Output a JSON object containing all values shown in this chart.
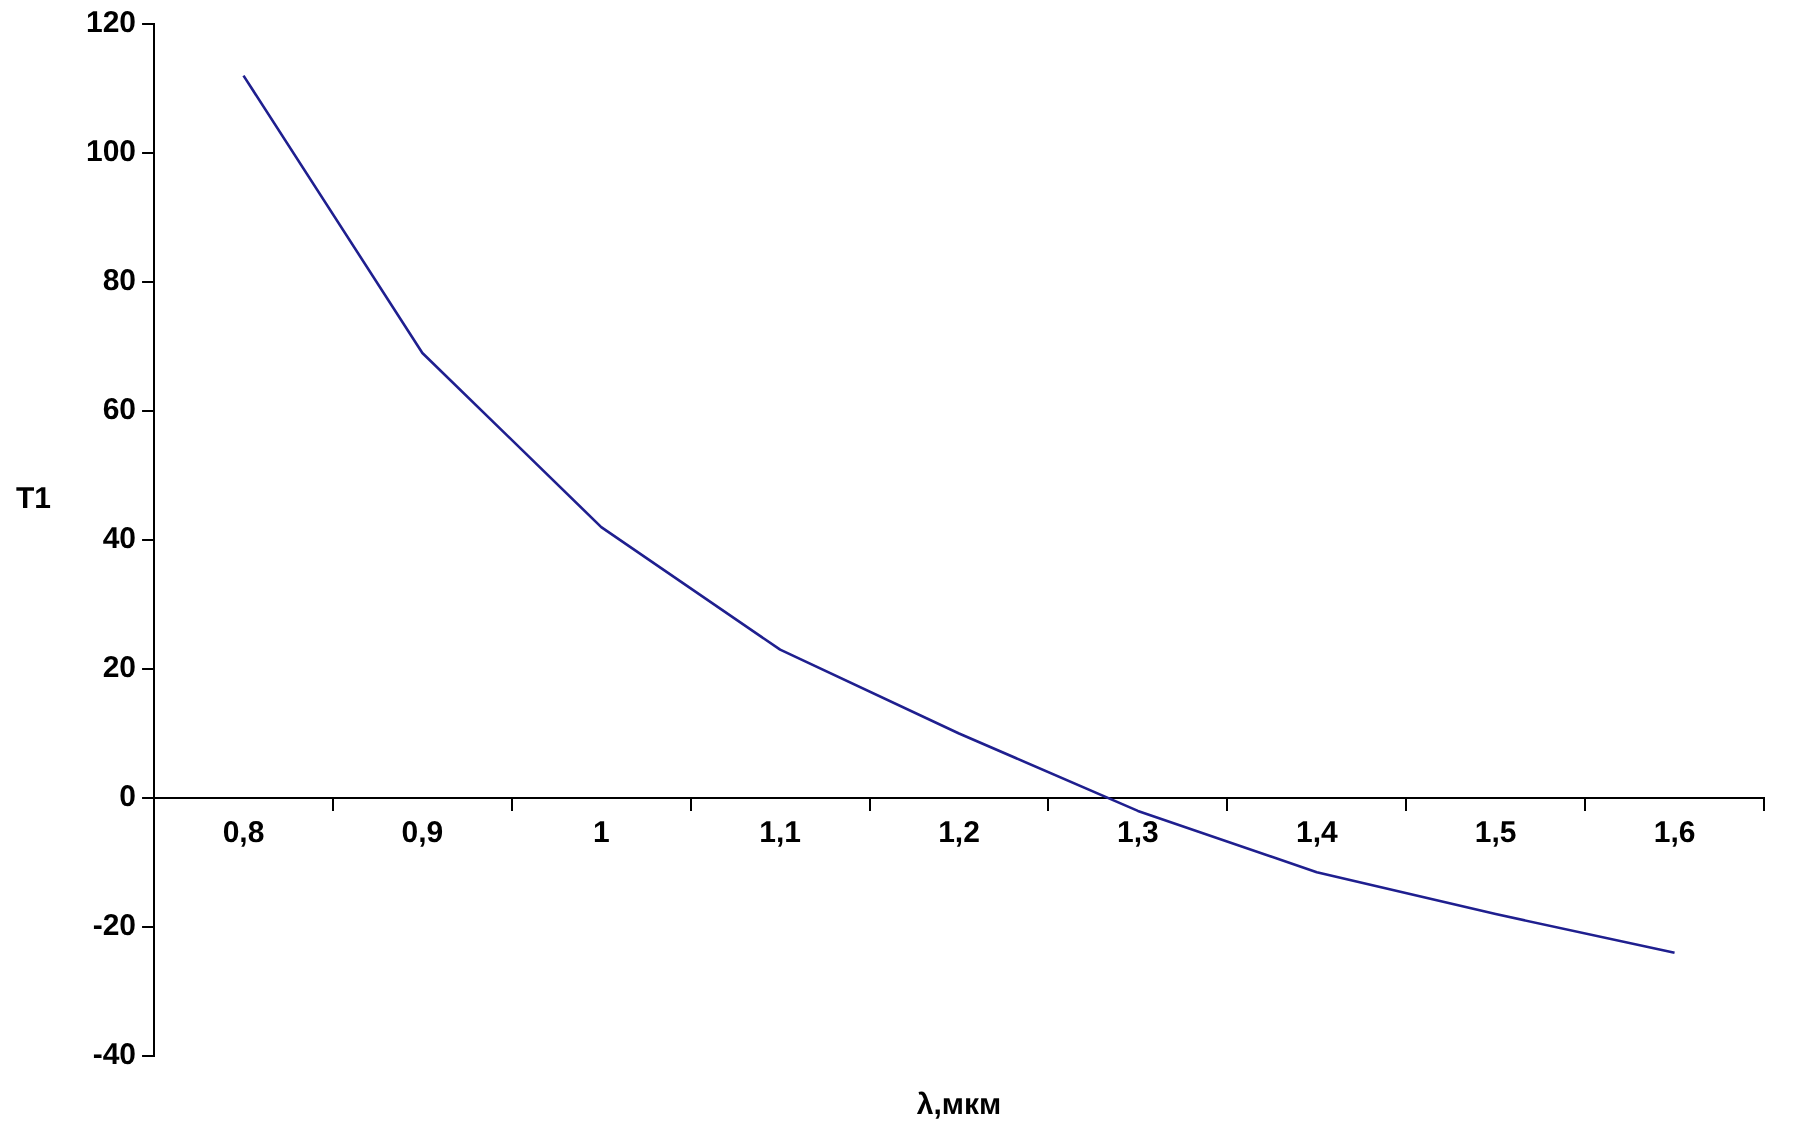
{
  "chart_data": {
    "type": "line",
    "xlabel": "λ,мкм",
    "ylabel": "T1",
    "categories": [
      "0,8",
      "0,9",
      "1",
      "1,1",
      "1,2",
      "1,3",
      "1,4",
      "1,5",
      "1,6"
    ],
    "series": [
      {
        "color": "#1f1f8f",
        "values": [
          112,
          69,
          42,
          23,
          10,
          -2,
          -11.5,
          -18,
          -24
        ]
      }
    ],
    "ylim": [
      -40,
      120
    ],
    "yticks": [
      -40,
      -20,
      0,
      20,
      40,
      60,
      80,
      100,
      120
    ],
    "grid": false,
    "legend": false,
    "marker": "none",
    "line_style": "solid"
  }
}
